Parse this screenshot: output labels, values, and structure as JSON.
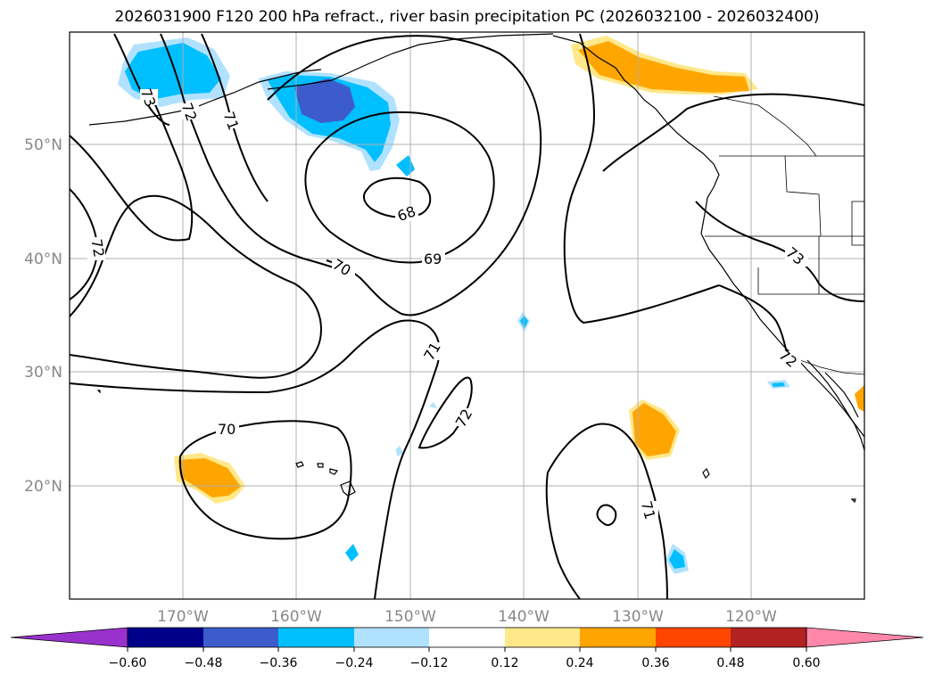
{
  "title": "2026031900 F120 200 hPa refract., river basin precipitation PC (2026032100 - 2026032400)",
  "map": {
    "extent_lon": [
      -180,
      -110
    ],
    "extent_lat": [
      10,
      60
    ],
    "lat_labels": [
      "20°N",
      "30°N",
      "40°N",
      "50°N"
    ],
    "lon_labels": [
      "170°W",
      "160°W",
      "150°W",
      "140°W",
      "130°W",
      "120°W"
    ],
    "contour_labels": [
      "73",
      "72",
      "71",
      "68",
      "69",
      "70",
      "72",
      "71",
      "72",
      "70",
      "71",
      "73",
      "72"
    ]
  },
  "colorbar": {
    "ticks": [
      "−0.60",
      "−0.48",
      "−0.36",
      "−0.24",
      "−0.12",
      "0.12",
      "0.24",
      "0.36",
      "0.48",
      "0.60"
    ],
    "colors": {
      "lt_m060": "#9932cc",
      "m060_m048": "#00008b",
      "m048_m036": "#3c5ccc",
      "m036_m024": "#00bfff",
      "m024_m012": "#b0e2ff",
      "m012_012": "#ffffff",
      "p012_p024": "#ffe88a",
      "p024_p036": "#ffa500",
      "p036_p048": "#ff4500",
      "p048_p060": "#b22222",
      "gt_p060": "#ff88aa"
    }
  }
}
